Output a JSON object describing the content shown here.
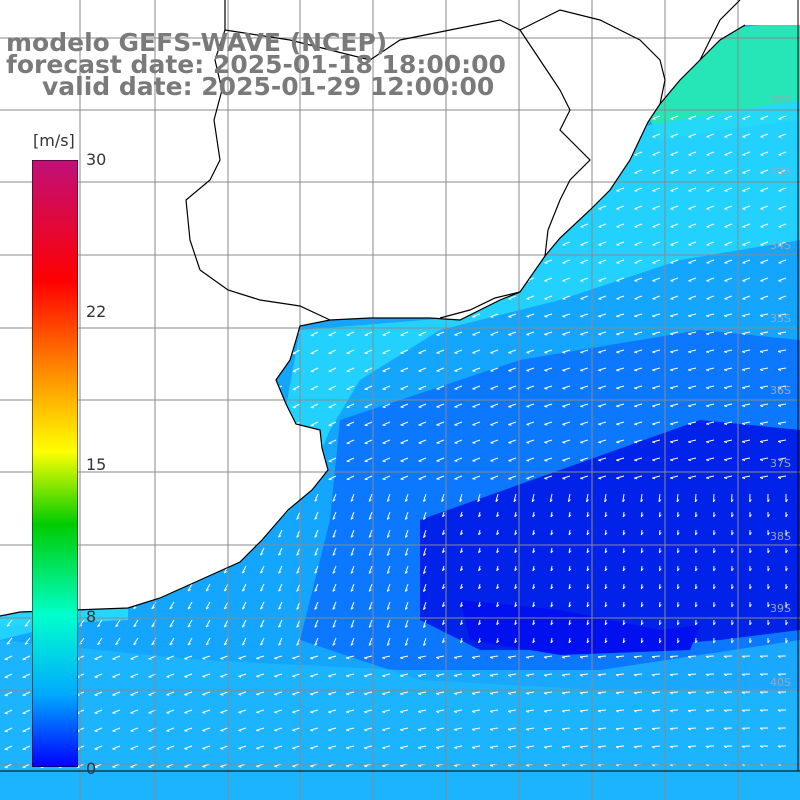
{
  "title": {
    "line1": "modelo GEFS-WAVE (NCEP)",
    "line2": "forecast date: 2025-01-18 18:00:00",
    "line3": "valid date: 2025-01-29 12:00:00"
  },
  "colorbar": {
    "unit": "[m/s]",
    "ticks": [
      "30",
      "22",
      "15",
      "8",
      "0"
    ],
    "colors": [
      "#c0107a",
      "#ff0000",
      "#ff8c00",
      "#ffff00",
      "#00cc00",
      "#00ffcc",
      "#00aaff",
      "#0000ff"
    ]
  },
  "map": {
    "lat_labels": [
      "32S",
      "33S",
      "34S",
      "35S",
      "36S",
      "37S",
      "38S",
      "39S",
      "40S"
    ],
    "field_colors": {
      "land": "#ffffff",
      "deep_blue": "#0018e6",
      "mid_blue": "#0a70ff",
      "light_blue": "#14a6ff",
      "cyan": "#25d6ff",
      "green_cyan": "#26e6b8"
    },
    "grid_color": "#8a8a8a",
    "coast_color": "#000000"
  }
}
